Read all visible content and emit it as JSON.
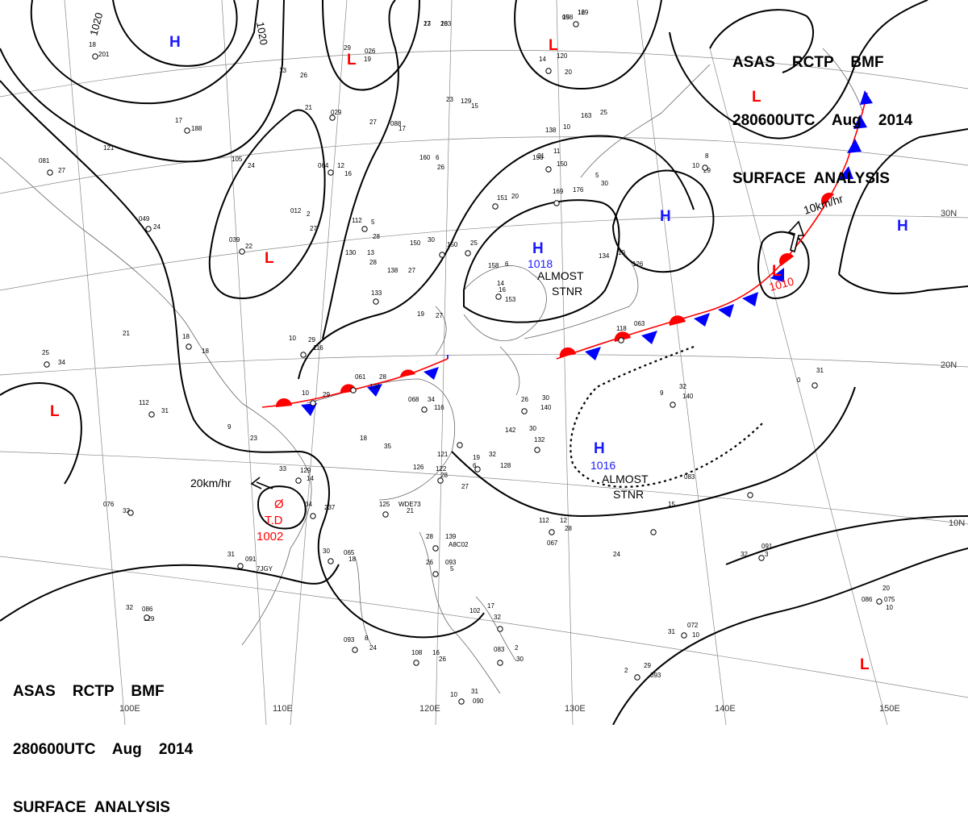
{
  "header_top": {
    "line1": "ASAS    RCTP    BMF",
    "line2": "280600UTC    Aug    2014",
    "line3": "SURFACE  ANALYSIS"
  },
  "header_bottom": {
    "line1": "ASAS    RCTP    BMF",
    "line2": "280600UTC    Aug    2014",
    "line3": "SURFACE  ANALYSIS"
  },
  "colors": {
    "high": "#1a1aff",
    "low": "#ff0000",
    "isobar": "#000000",
    "grid": "#777777",
    "warm_front": "#ff0000",
    "cold_front": "#0000ff"
  },
  "isobar_labels": [
    "1020",
    "1020"
  ],
  "lat_labels": [
    "30N",
    "20N",
    "10N"
  ],
  "lon_labels": [
    "100E",
    "110E",
    "120E",
    "130E",
    "140E",
    "150E"
  ],
  "pressure_centers": [
    {
      "type": "H",
      "label": "H"
    },
    {
      "type": "L",
      "label": "L"
    },
    {
      "type": "L",
      "label": "L"
    },
    {
      "type": "L",
      "label": "L"
    },
    {
      "type": "L",
      "label": "L"
    },
    {
      "type": "H",
      "label": "H",
      "value": "1018"
    },
    {
      "type": "H",
      "label": "H"
    },
    {
      "type": "H",
      "label": "H"
    },
    {
      "type": "H",
      "label": "H",
      "value": "1016"
    },
    {
      "type": "L",
      "label": "L",
      "value": "1010"
    },
    {
      "type": "L",
      "label": "L"
    },
    {
      "type": "L",
      "label": "L"
    }
  ],
  "annotations": {
    "stnr1_line1": "ALMOST",
    "stnr1_line2": "STNR",
    "stnr2_line1": "ALMOST",
    "stnr2_line2": "STNR",
    "td_label": "T.D",
    "td_value": "1002",
    "td_symbol": "Ø",
    "td_motion": "20km/hr",
    "low_motion": "10km/hr"
  },
  "station_numbers": [
    "23",
    "103",
    "15",
    "129",
    "13",
    "26",
    "29",
    "026",
    "19",
    "14",
    "120",
    "21",
    "029",
    "20",
    "18",
    "201",
    "17",
    "188",
    "121",
    "27",
    "088",
    "17",
    "23",
    "129",
    "15",
    "138",
    "10",
    "163",
    "25",
    "21",
    "081",
    "27",
    "064",
    "12",
    "16",
    "105",
    "24",
    "160",
    "6",
    "26",
    "156",
    "11",
    "150",
    "10",
    "8",
    "29",
    "012",
    "2",
    "27",
    "151",
    "20",
    "169",
    "176",
    "5",
    "30",
    "049",
    "24",
    "112",
    "5",
    "28",
    "039",
    "22",
    "130",
    "13",
    "28",
    "138",
    "27",
    "150",
    "30",
    "150",
    "25",
    "158",
    "6",
    "14",
    "134",
    "10",
    "126",
    "133",
    "16",
    "153",
    "10",
    "29",
    "116",
    "21",
    "18",
    "18",
    "19",
    "27",
    "063",
    "118",
    "25",
    "34",
    "061",
    "28",
    "136",
    "10",
    "29",
    "112",
    "31",
    "068",
    "34",
    "116",
    "26",
    "30",
    "140",
    "9",
    "32",
    "140",
    "0",
    "31",
    "142",
    "30",
    "132",
    "9",
    "23",
    "18",
    "35",
    "121",
    "19",
    "32",
    "128",
    "6",
    "126",
    "122",
    "28",
    "33",
    "129",
    "14",
    "27",
    "083",
    "15",
    "34",
    "237",
    "125",
    "WDE73",
    "21",
    "076",
    "32",
    "112",
    "12",
    "28",
    "067",
    "28",
    "139",
    "24",
    "A8C02",
    "31",
    "091",
    "7JGY",
    "30",
    "065",
    "18",
    "26",
    "093",
    "5",
    "32",
    "091",
    "3",
    "32",
    "086",
    "129",
    "093",
    "8",
    "24",
    "108",
    "16",
    "26",
    "102",
    "17",
    "32",
    "083",
    "2",
    "30",
    "086",
    "20",
    "075",
    "10",
    "31",
    "072",
    "10",
    "2",
    "29",
    "093",
    "10",
    "31",
    "090",
    "17",
    "28",
    "098",
    "16"
  ]
}
